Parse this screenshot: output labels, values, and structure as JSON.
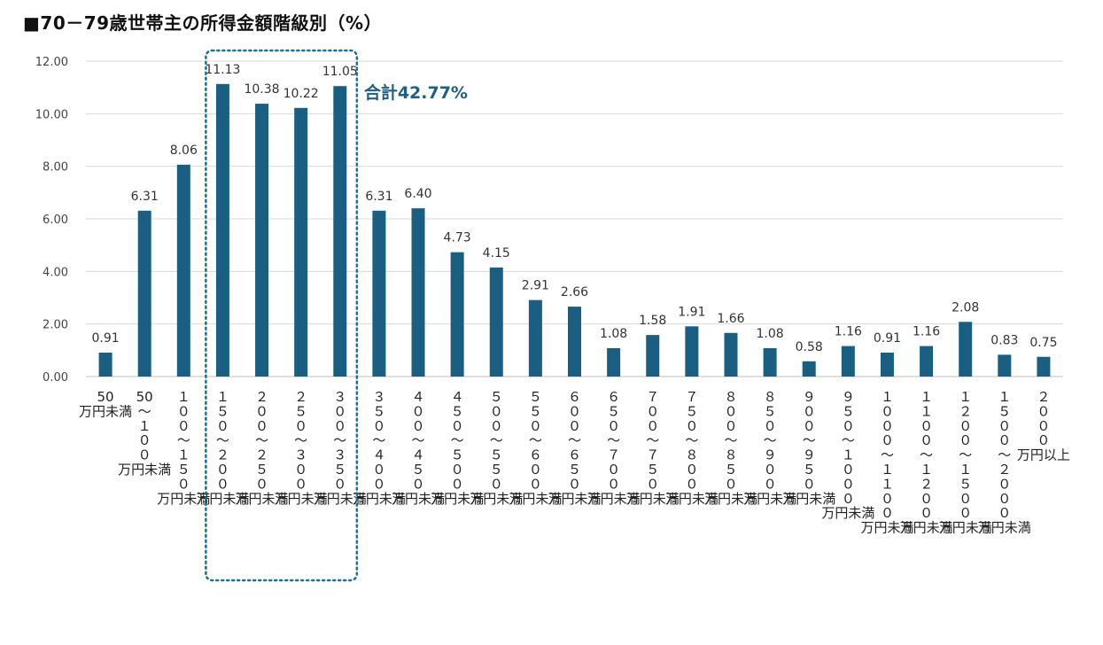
{
  "title": "■70－79歳世帯主の所得金額階級別（%）",
  "colors": {
    "bar": "#1a5f82",
    "grid": "#d9d9d9",
    "highlight": "#1f6f95"
  },
  "chart_data": {
    "type": "bar",
    "title": "■70－79歳世帯主の所得金額階級別（%）",
    "xlabel": "",
    "ylabel": "",
    "ylim": [
      0,
      12
    ],
    "yticks": [
      "0.00",
      "2.00",
      "4.00",
      "6.00",
      "8.00",
      "10.00",
      "12.00"
    ],
    "grid": true,
    "categories": [
      "50\n万円未満",
      "50\n～\n１\n０\n０\n万円未満",
      "１\n０\n０\n～\n１\n５\n０\n万円未満",
      "１\n５\n０\n～\n２\n０\n０\n万円未満",
      "２\n０\n０\n～\n２\n５\n０\n万円未満",
      "２\n５\n０\n～\n３\n０\n０\n万円未満",
      "３\n０\n０\n～\n３\n５\n０\n万円未満",
      "３\n５\n０\n～\n４\n０\n０\n万円未満",
      "４\n０\n０\n～\n４\n５\n０\n万円未満",
      "４\n５\n０\n～\n５\n０\n０\n万円未満",
      "５\n０\n０\n～\n５\n５\n０\n万円未満",
      "５\n５\n０\n～\n６\n０\n０\n万円未満",
      "６\n０\n０\n～\n６\n５\n０\n万円未満",
      "６\n５\n０\n～\n７\n０\n０\n万円未満",
      "７\n０\n０\n～\n７\n５\n０\n万円未満",
      "７\n５\n０\n～\n８\n０\n０\n万円未満",
      "８\n０\n０\n～\n８\n５\n０\n万円未満",
      "８\n５\n０\n～\n９\n０\n０\n万円未満",
      "９\n０\n０\n～\n９\n５\n０\n万円未満",
      "９\n５\n０\n～\n１\n０\n０\n０\n万円未満",
      "１\n０\n０\n０\n～\n１\n１\n０\n０\n万円未満",
      "１\n１\n０\n０\n～\n１\n２\n０\n０\n万円未満",
      "１\n２\n０\n０\n～\n１\n５\n０\n０\n万円未満",
      "１\n５\n０\n０\n～\n２\n０\n０\n０\n万円未満",
      "２\n０\n０\n０\n万円以上"
    ],
    "values": [
      0.91,
      6.31,
      8.06,
      11.13,
      10.38,
      10.22,
      11.05,
      6.31,
      6.4,
      4.73,
      4.15,
      2.91,
      2.66,
      1.08,
      1.58,
      1.91,
      1.66,
      1.08,
      0.58,
      1.16,
      0.91,
      1.16,
      2.08,
      0.83,
      0.75
    ],
    "value_labels": [
      "0.91",
      "6.31",
      "8.06",
      "11.13",
      "10.38",
      "10.22",
      "11.05",
      "6.31",
      "6.40",
      "4.73",
      "4.15",
      "2.91",
      "2.66",
      "1.08",
      "1.58",
      "1.91",
      "1.66",
      "1.08",
      "0.58",
      "1.16",
      "0.91",
      "1.16",
      "2.08",
      "0.83",
      "0.75"
    ],
    "highlight_range": [
      3,
      6
    ],
    "annotation": "合計42.77%"
  }
}
